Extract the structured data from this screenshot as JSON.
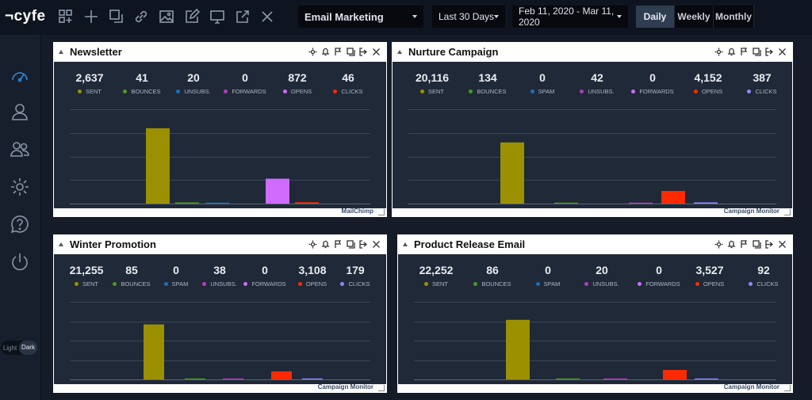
{
  "app": {
    "logo": "¬cyfe"
  },
  "toolbar": {
    "icons": [
      "add-widget-icon",
      "plus-icon",
      "copy-icon",
      "link-icon",
      "image-icon",
      "edit-icon",
      "monitor-icon",
      "share-icon",
      "close-icon"
    ],
    "dashboard": "Email Marketing",
    "range": "Last 30 Days",
    "dates": "Feb 11, 2020 - Mar 11, 2020",
    "periods": [
      "Daily",
      "Weekly",
      "Monthly"
    ],
    "active_period": "Daily"
  },
  "sidebar": {
    "icons": [
      "dashboard-icon",
      "user-icon",
      "users-icon",
      "settings-icon",
      "help-icon",
      "power-icon"
    ],
    "theme_light": "Light",
    "theme_dark": "Dark"
  },
  "colors": {
    "sent": "#9a9000",
    "bounces": "#4b9a1e",
    "unsubs": "#1f6fb5",
    "spam": "#1f6fb5",
    "forwards": "#b23db7",
    "opens": "#ff2a00",
    "clicks": "#8a8cff",
    "bar_opens_newsletter": "#cf6bff"
  },
  "widgets": [
    {
      "title": "Newsletter",
      "source": "MailChimp",
      "stats": [
        {
          "value": "2,637",
          "label": "SENT",
          "color": "#9a9000"
        },
        {
          "value": "41",
          "label": "BOUNCES",
          "color": "#4b9a1e"
        },
        {
          "value": "20",
          "label": "UNSUBS.",
          "color": "#1f6fb5"
        },
        {
          "value": "0",
          "label": "FORWARDS",
          "color": "#b23db7"
        },
        {
          "value": "872",
          "label": "OPENS",
          "color": "#cf6bff"
        },
        {
          "value": "46",
          "label": "CLICKS",
          "color": "#ff2a00"
        }
      ]
    },
    {
      "title": "Nurture Campaign",
      "source": "Campaign Monitor",
      "stats": [
        {
          "value": "20,116",
          "label": "SENT",
          "color": "#9a9000"
        },
        {
          "value": "134",
          "label": "BOUNCES",
          "color": "#4b9a1e"
        },
        {
          "value": "0",
          "label": "SPAM",
          "color": "#1f6fb5"
        },
        {
          "value": "42",
          "label": "UNSUBS.",
          "color": "#b23db7"
        },
        {
          "value": "0",
          "label": "FORWARDS",
          "color": "#cf6bff"
        },
        {
          "value": "4,152",
          "label": "OPENS",
          "color": "#ff2a00"
        },
        {
          "value": "387",
          "label": "CLICKS",
          "color": "#8a8cff"
        }
      ]
    },
    {
      "title": "Winter Promotion",
      "source": "Campaign Monitor",
      "stats": [
        {
          "value": "21,255",
          "label": "SENT",
          "color": "#9a9000"
        },
        {
          "value": "85",
          "label": "BOUNCES",
          "color": "#4b9a1e"
        },
        {
          "value": "0",
          "label": "SPAM",
          "color": "#1f6fb5"
        },
        {
          "value": "38",
          "label": "UNSUBS.",
          "color": "#b23db7"
        },
        {
          "value": "0",
          "label": "FORWARDS",
          "color": "#cf6bff"
        },
        {
          "value": "3,108",
          "label": "OPENS",
          "color": "#ff2a00"
        },
        {
          "value": "179",
          "label": "CLICKS",
          "color": "#8a8cff"
        }
      ]
    },
    {
      "title": "Product Release Email",
      "source": "Campaign Monitor",
      "stats": [
        {
          "value": "22,252",
          "label": "SENT",
          "color": "#9a9000"
        },
        {
          "value": "86",
          "label": "BOUNCES",
          "color": "#4b9a1e"
        },
        {
          "value": "0",
          "label": "SPAM",
          "color": "#1f6fb5"
        },
        {
          "value": "20",
          "label": "UNSUBS.",
          "color": "#b23db7"
        },
        {
          "value": "0",
          "label": "FORWARDS",
          "color": "#cf6bff"
        },
        {
          "value": "3,527",
          "label": "OPENS",
          "color": "#ff2a00"
        },
        {
          "value": "92",
          "label": "CLICKS",
          "color": "#8a8cff"
        }
      ]
    }
  ],
  "chart_data": [
    {
      "type": "bar",
      "categories": [
        "SENT",
        "BOUNCES",
        "UNSUBS.",
        "FORWARDS",
        "OPENS",
        "CLICKS"
      ],
      "values": [
        2637,
        41,
        20,
        0,
        872,
        46
      ],
      "colors": [
        "#9a9000",
        "#4b9a1e",
        "#1f6fb5",
        "#b23db7",
        "#cf6bff",
        "#ff2a00"
      ],
      "ylim": [
        0,
        3300
      ],
      "grid": true
    },
    {
      "type": "bar",
      "categories": [
        "SENT",
        "BOUNCES",
        "SPAM",
        "UNSUBS.",
        "FORWARDS",
        "OPENS",
        "CLICKS"
      ],
      "values": [
        20116,
        134,
        0,
        42,
        0,
        4152,
        387
      ],
      "colors": [
        "#9a9000",
        "#4b9a1e",
        "#1f6fb5",
        "#b23db7",
        "#cf6bff",
        "#ff2a00",
        "#8a8cff"
      ],
      "ylim": [
        0,
        31000
      ],
      "grid": true
    },
    {
      "type": "bar",
      "categories": [
        "SENT",
        "BOUNCES",
        "SPAM",
        "UNSUBS.",
        "FORWARDS",
        "OPENS",
        "CLICKS"
      ],
      "values": [
        21255,
        85,
        0,
        38,
        0,
        3108,
        179
      ],
      "colors": [
        "#9a9000",
        "#4b9a1e",
        "#1f6fb5",
        "#b23db7",
        "#cf6bff",
        "#ff2a00",
        "#8a8cff"
      ],
      "ylim": [
        0,
        30000
      ],
      "grid": true
    },
    {
      "type": "bar",
      "categories": [
        "SENT",
        "BOUNCES",
        "SPAM",
        "UNSUBS.",
        "FORWARDS",
        "OPENS",
        "CLICKS"
      ],
      "values": [
        22252,
        86,
        0,
        20,
        0,
        3527,
        92
      ],
      "colors": [
        "#9a9000",
        "#4b9a1e",
        "#1f6fb5",
        "#b23db7",
        "#cf6bff",
        "#ff2a00",
        "#8a8cff"
      ],
      "ylim": [
        0,
        29000
      ],
      "grid": true
    }
  ]
}
